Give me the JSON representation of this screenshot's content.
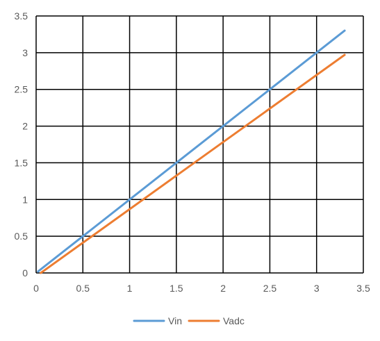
{
  "chart_data": {
    "type": "line",
    "title": "",
    "xlabel": "",
    "ylabel": "",
    "xlim": [
      0,
      3.5
    ],
    "ylim": [
      0,
      3.5
    ],
    "x_ticks": [
      "0",
      "0.5",
      "1",
      "1.5",
      "2",
      "2.5",
      "3",
      "3.5"
    ],
    "y_ticks": [
      "0",
      "0.5",
      "1",
      "1.5",
      "2",
      "2.5",
      "3",
      "3.5"
    ],
    "grid": true,
    "legend_position": "bottom",
    "series": [
      {
        "name": "Vin",
        "color": "#5B9BD5",
        "points": [
          [
            0.02,
            0.02
          ],
          [
            3.3,
            3.3
          ]
        ]
      },
      {
        "name": "Vadc",
        "color": "#ED7D31",
        "points": [
          [
            0.05,
            0.0
          ],
          [
            3.3,
            2.97
          ]
        ]
      }
    ]
  }
}
